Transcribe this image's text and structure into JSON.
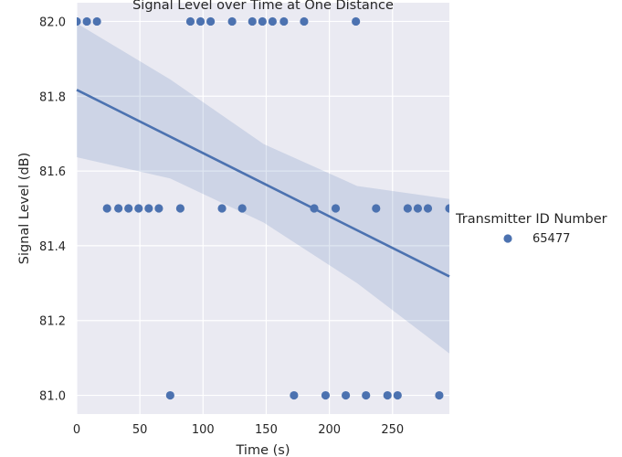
{
  "chart_data": {
    "type": "scatter",
    "title": "Signal Level over Time at One Distance",
    "xlabel": "Time (s)",
    "ylabel": "Signal Level (dB)",
    "xlim": [
      0,
      295
    ],
    "ylim": [
      80.95,
      82.05
    ],
    "xticks": [
      0,
      50,
      100,
      150,
      200,
      250
    ],
    "yticks": [
      81.0,
      81.2,
      81.4,
      81.6,
      81.8,
      82.0
    ],
    "xtick_labels": [
      "0",
      "50",
      "100",
      "150",
      "200",
      "250"
    ],
    "ytick_labels": [
      "81.0",
      "81.2",
      "81.4",
      "81.6",
      "81.8",
      "82.0"
    ],
    "grid": true,
    "legend": {
      "title": "Transmitter ID Number",
      "placement": "right",
      "entries": [
        "65477"
      ]
    },
    "series": [
      {
        "name": "65477",
        "color": "#4c72b0",
        "points": [
          [
            0,
            82.0
          ],
          [
            8,
            82.0
          ],
          [
            16,
            82.0
          ],
          [
            24,
            81.5
          ],
          [
            33,
            81.5
          ],
          [
            41,
            81.5
          ],
          [
            49,
            81.5
          ],
          [
            57,
            81.5
          ],
          [
            65,
            81.5
          ],
          [
            74,
            81.0
          ],
          [
            82,
            81.5
          ],
          [
            90,
            82.0
          ],
          [
            98,
            82.0
          ],
          [
            106,
            82.0
          ],
          [
            115,
            81.5
          ],
          [
            123,
            82.0
          ],
          [
            131,
            81.5
          ],
          [
            139,
            82.0
          ],
          [
            147,
            82.0
          ],
          [
            155,
            82.0
          ],
          [
            164,
            82.0
          ],
          [
            172,
            81.0
          ],
          [
            180,
            82.0
          ],
          [
            188,
            81.5
          ],
          [
            197,
            81.0
          ],
          [
            205,
            81.5
          ],
          [
            213,
            81.0
          ],
          [
            221,
            82.0
          ],
          [
            229,
            81.0
          ],
          [
            237,
            81.5
          ],
          [
            246,
            81.0
          ],
          [
            254,
            81.0
          ],
          [
            262,
            81.5
          ],
          [
            270,
            81.5
          ],
          [
            278,
            81.5
          ],
          [
            287,
            81.0
          ],
          [
            295,
            81.5
          ]
        ]
      }
    ],
    "regression": {
      "x": [
        0,
        295
      ],
      "y": [
        81.817,
        81.318
      ],
      "color": "#4c72b0",
      "ci_upper": [
        [
          0,
          81.995
        ],
        [
          74,
          81.845
        ],
        [
          148,
          81.672
        ],
        [
          222,
          81.56
        ],
        [
          295,
          81.525
        ]
      ],
      "ci_lower": [
        [
          0,
          81.637
        ],
        [
          74,
          81.58
        ],
        [
          148,
          81.462
        ],
        [
          222,
          81.3
        ],
        [
          295,
          81.112
        ]
      ]
    }
  }
}
